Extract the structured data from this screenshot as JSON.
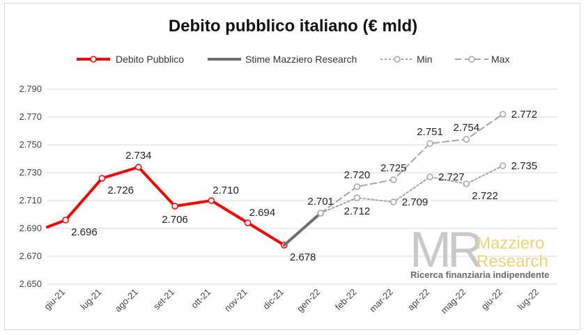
{
  "chart_data": {
    "type": "line",
    "title": "Debito pubblico italiano (€ mld)",
    "categories": [
      "giu-21",
      "lug-21",
      "ago-21",
      "set-21",
      "ott-21",
      "nov-21",
      "dic-21",
      "gen-22",
      "feb-22",
      "mar-22",
      "apr-22",
      "mag-22",
      "giu-22",
      "lug-22"
    ],
    "ylim": [
      2650,
      2790
    ],
    "yticks": [
      2650,
      2670,
      2690,
      2710,
      2730,
      2750,
      2770,
      2790
    ],
    "ytick_labels": [
      "2.650",
      "2.670",
      "2.690",
      "2.710",
      "2.730",
      "2.750",
      "2.770",
      "2.790"
    ],
    "grid": true,
    "legend_position": "top",
    "series": [
      {
        "name": "Debito Pubblico",
        "color": "#ff0000",
        "style": "solid",
        "lead_in_value": 2691,
        "points": [
          {
            "x": "giu-21",
            "y": 2696,
            "label": "2.696",
            "anchor": "below-right"
          },
          {
            "x": "lug-21",
            "y": 2726,
            "label": "2.726",
            "anchor": "below-right"
          },
          {
            "x": "ago-21",
            "y": 2734,
            "label": "2.734",
            "anchor": "above"
          },
          {
            "x": "set-21",
            "y": 2706,
            "label": "2.706",
            "anchor": "below"
          },
          {
            "x": "ott-21",
            "y": 2710,
            "label": "2.710",
            "anchor": "above-right"
          },
          {
            "x": "nov-21",
            "y": 2694,
            "label": "2.694",
            "anchor": "above-right"
          },
          {
            "x": "dic-21",
            "y": 2678,
            "label": "2.678",
            "anchor": "below-right"
          }
        ]
      },
      {
        "name": "Stime Mazziero Research",
        "color": "#6e6e6e",
        "style": "solid",
        "points": [
          {
            "x": "dic-21",
            "y": 2678
          },
          {
            "x": "gen-22",
            "y": 2701,
            "label": "2.701",
            "anchor": "above"
          }
        ]
      },
      {
        "name": "Min",
        "color": "#a6a6a6",
        "style": "dotted",
        "points": [
          {
            "x": "gen-22",
            "y": 2701
          },
          {
            "x": "feb-22",
            "y": 2712,
            "label": "2.712",
            "anchor": "below"
          },
          {
            "x": "mar-22",
            "y": 2709,
            "label": "2.709",
            "anchor": "right"
          },
          {
            "x": "apr-22",
            "y": 2727,
            "label": "2.727",
            "anchor": "right"
          },
          {
            "x": "mag-22",
            "y": 2722,
            "label": "2.722",
            "anchor": "below-right"
          },
          {
            "x": "giu-22",
            "y": 2735,
            "label": "2.735",
            "anchor": "right"
          }
        ]
      },
      {
        "name": "Max",
        "color": "#a6a6a6",
        "style": "dashed",
        "points": [
          {
            "x": "gen-22",
            "y": 2701
          },
          {
            "x": "feb-22",
            "y": 2720,
            "label": "2.720",
            "anchor": "above"
          },
          {
            "x": "mar-22",
            "y": 2725,
            "label": "2.725",
            "anchor": "above"
          },
          {
            "x": "apr-22",
            "y": 2751,
            "label": "2.751",
            "anchor": "above"
          },
          {
            "x": "mag-22",
            "y": 2754,
            "label": "2.754",
            "anchor": "above"
          },
          {
            "x": "giu-22",
            "y": 2772,
            "label": "2.772",
            "anchor": "right"
          }
        ]
      }
    ]
  },
  "watermark": {
    "logo_letters": "MR",
    "brand_line1": "Mazziero",
    "brand_line2": "Research",
    "tagline": "Ricerca finanziaria indipendente"
  }
}
